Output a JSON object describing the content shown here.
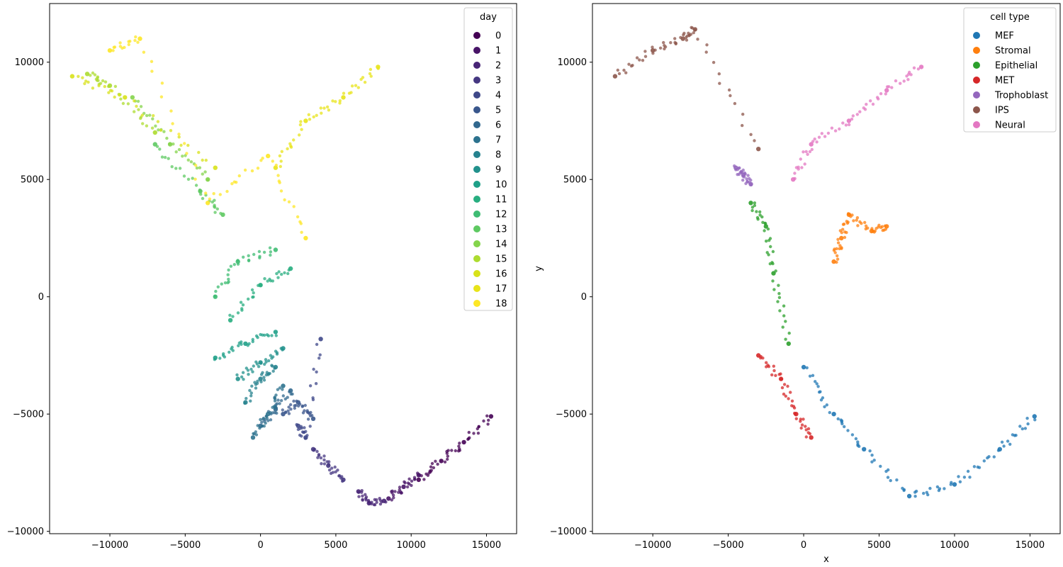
{
  "chart_data": [
    {
      "type": "scatter",
      "title": "",
      "xlabel": "",
      "ylabel": "",
      "xlim": [
        -14000,
        17000
      ],
      "ylim": [
        -10100,
        12500
      ],
      "xticks": [
        -10000,
        -5000,
        0,
        5000,
        10000,
        15000
      ],
      "yticks": [
        -10000,
        -5000,
        0,
        5000,
        10000
      ],
      "xtick_labels": [
        "−10000",
        "−5000",
        "0",
        "5000",
        "10000",
        "15000"
      ],
      "ytick_labels": [
        "−10000",
        "−5000",
        "0",
        "5000",
        "10000"
      ],
      "grid": false,
      "legend": {
        "title": "day",
        "placement": "top-right",
        "entries": [
          "0",
          "1",
          "2",
          "3",
          "4",
          "5",
          "6",
          "7",
          "8",
          "9",
          "10",
          "11",
          "12",
          "13",
          "14",
          "15",
          "16",
          "17",
          "18"
        ],
        "colors": [
          "#440154",
          "#481467",
          "#482576",
          "#453781",
          "#3f4889",
          "#39568c",
          "#31688e",
          "#2c728e",
          "#26828e",
          "#21918c",
          "#1fa088",
          "#28ae80",
          "#3fbc73",
          "#5ec962",
          "#84d44b",
          "#addc30",
          "#d8e219",
          "#e8e419",
          "#fde725"
        ]
      },
      "colormap": "viridis",
      "series": [
        {
          "name": "0",
          "x": [
            10500,
            12000,
            13500,
            15300
          ],
          "y": [
            -7800,
            -7000,
            -6200,
            -5100
          ]
        },
        {
          "name": "1",
          "x": [
            8500,
            9500,
            10500
          ],
          "y": [
            -8600,
            -8100,
            -7600
          ]
        },
        {
          "name": "2",
          "x": [
            6500,
            7200,
            8200
          ],
          "y": [
            -8300,
            -8800,
            -8700
          ]
        },
        {
          "name": "3",
          "x": [
            3500,
            4500,
            5500
          ],
          "y": [
            -6500,
            -7200,
            -7800
          ]
        },
        {
          "name": "4",
          "x": [
            2500,
            3000,
            4000
          ],
          "y": [
            -5500,
            -6000,
            -1800
          ]
        },
        {
          "name": "5",
          "x": [
            1500,
            2500,
            3500
          ],
          "y": [
            -5000,
            -4500,
            -5200
          ]
        },
        {
          "name": "6",
          "x": [
            0,
            1000,
            2000
          ],
          "y": [
            -5500,
            -4800,
            -4000
          ]
        },
        {
          "name": "7",
          "x": [
            -500,
            500,
            1500
          ],
          "y": [
            -6000,
            -5000,
            -3800
          ]
        },
        {
          "name": "8",
          "x": [
            -1000,
            0,
            1000
          ],
          "y": [
            -4500,
            -3500,
            -3000
          ]
        },
        {
          "name": "9",
          "x": [
            -1500,
            0,
            1500
          ],
          "y": [
            -3500,
            -2800,
            -2200
          ]
        },
        {
          "name": "10",
          "x": [
            -3000,
            -1000,
            1000
          ],
          "y": [
            -2600,
            -2000,
            -1500
          ]
        },
        {
          "name": "11",
          "x": [
            -2000,
            0,
            2000
          ],
          "y": [
            -1000,
            500,
            1200
          ]
        },
        {
          "name": "12",
          "x": [
            -3000,
            -1500,
            1000
          ],
          "y": [
            0,
            1500,
            2000
          ]
        },
        {
          "name": "13",
          "x": [
            -7000,
            -4000,
            -2500
          ],
          "y": [
            6500,
            4500,
            3500
          ]
        },
        {
          "name": "14",
          "x": [
            -8500,
            -6000,
            -3500
          ],
          "y": [
            8500,
            6500,
            5000
          ]
        },
        {
          "name": "15",
          "x": [
            -11500,
            -10000,
            -7000
          ],
          "y": [
            9500,
            9000,
            7000
          ]
        },
        {
          "name": "16",
          "x": [
            -12500,
            -9000,
            -3000
          ],
          "y": [
            9400,
            8500,
            5500
          ]
        },
        {
          "name": "17",
          "x": [
            1000,
            3000,
            5500,
            7800
          ],
          "y": [
            5500,
            7500,
            8500,
            9800
          ]
        },
        {
          "name": "18",
          "x": [
            -10000,
            -8000,
            -3500,
            500,
            3000
          ],
          "y": [
            10500,
            11000,
            4000,
            6000,
            2500
          ]
        }
      ]
    },
    {
      "type": "scatter",
      "title": "",
      "xlabel": "x",
      "ylabel": "y",
      "xlim": [
        -14000,
        17000
      ],
      "ylim": [
        -10100,
        12500
      ],
      "xticks": [
        -10000,
        -5000,
        0,
        5000,
        10000,
        15000
      ],
      "yticks": [
        -10000,
        -5000,
        0,
        5000,
        10000
      ],
      "xtick_labels": [
        "−10000",
        "−5000",
        "0",
        "5000",
        "10000",
        "15000"
      ],
      "ytick_labels": [
        "−10000",
        "−5000",
        "0",
        "5000",
        "10000"
      ],
      "grid": false,
      "legend": {
        "title": "cell type",
        "placement": "top-right",
        "entries": [
          "MEF",
          "Stromal",
          "Epithelial",
          "MET",
          "Trophoblast",
          "IPS",
          "Neural"
        ],
        "colors": [
          "#1f77b4",
          "#ff7f0e",
          "#2ca02c",
          "#d62728",
          "#9467bd",
          "#8c564b",
          "#e377c2"
        ]
      },
      "series": [
        {
          "name": "MEF",
          "x": [
            0,
            2000,
            4000,
            7000,
            10000,
            13000,
            15300
          ],
          "y": [
            -3000,
            -5000,
            -6500,
            -8500,
            -8000,
            -6500,
            -5100
          ]
        },
        {
          "name": "Stromal",
          "x": [
            2000,
            2500,
            3000,
            4500,
            5500
          ],
          "y": [
            1500,
            2500,
            3500,
            2800,
            3000
          ]
        },
        {
          "name": "Epithelial",
          "x": [
            -3500,
            -2500,
            -2000,
            -1000
          ],
          "y": [
            4000,
            3000,
            1000,
            -2000
          ]
        },
        {
          "name": "MET",
          "x": [
            -3000,
            -1500,
            -500,
            500
          ],
          "y": [
            -2500,
            -3500,
            -5000,
            -6000
          ]
        },
        {
          "name": "Trophoblast",
          "x": [
            -4500,
            -4000,
            -3500
          ],
          "y": [
            5500,
            5200,
            4800
          ]
        },
        {
          "name": "IPS",
          "x": [
            -12500,
            -10000,
            -8000,
            -7200,
            -3000
          ],
          "y": [
            9400,
            10500,
            11000,
            11400,
            6300
          ]
        },
        {
          "name": "Neural",
          "x": [
            -700,
            500,
            3000,
            5500,
            7800
          ],
          "y": [
            5000,
            6500,
            7500,
            8800,
            9800
          ]
        }
      ]
    }
  ]
}
